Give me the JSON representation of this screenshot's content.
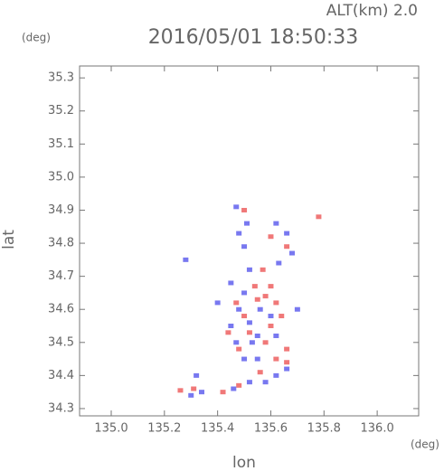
{
  "chart_data": {
    "type": "scatter",
    "title": "2016/05/01 18:50:33",
    "subtitle": "ALT(km) 2.0",
    "x_label": "lon",
    "y_label": "lat",
    "x_unit": "(deg)",
    "y_unit": "(deg)",
    "xlim": [
      134.881,
      136.156
    ],
    "ylim": [
      34.278,
      35.336
    ],
    "xticks": [
      {
        "value": 135,
        "label": "135.0"
      },
      135.2,
      135.4,
      135.6,
      135.8,
      {
        "value": 136,
        "label": "136.0"
      }
    ],
    "yticks": [
      34.3,
      34.4,
      34.5,
      34.6,
      34.7,
      34.8,
      34.9,
      {
        "value": 35,
        "label": "35.0"
      },
      35.1,
      35.2,
      35.3
    ],
    "series": [
      {
        "color": "#f07878",
        "x": [
          135.26,
          135.42,
          135.48,
          135.56,
          135.62,
          135.66,
          135.6,
          135.62,
          135.58,
          135.6,
          135.55,
          135.5,
          135.47,
          135.78,
          135.6,
          135.54,
          135.64,
          135.52,
          135.44,
          135.48,
          135.58,
          135.66,
          135.31,
          135.5,
          135.57,
          135.66
        ],
        "y": [
          34.355,
          34.35,
          34.37,
          34.41,
          34.45,
          34.48,
          34.55,
          34.62,
          34.64,
          34.67,
          34.63,
          34.58,
          34.62,
          34.88,
          34.82,
          34.67,
          34.58,
          34.53,
          34.53,
          34.48,
          34.5,
          34.44,
          34.36,
          34.9,
          34.72,
          34.79
        ]
      },
      {
        "color": "#7878f0",
        "x": [
          135.3,
          135.34,
          135.32,
          135.46,
          135.52,
          135.58,
          135.62,
          135.66,
          135.55,
          135.5,
          135.47,
          135.53,
          135.52,
          135.48,
          135.5,
          135.56,
          135.6,
          135.55,
          135.45,
          135.52,
          135.5,
          135.48,
          135.51,
          135.47,
          135.62,
          135.66,
          135.68,
          135.63,
          135.45,
          135.62,
          135.28,
          135.4,
          135.7
        ],
        "y": [
          34.34,
          34.35,
          34.4,
          34.36,
          34.38,
          34.38,
          34.4,
          34.42,
          34.45,
          34.45,
          34.5,
          34.5,
          34.56,
          34.6,
          34.65,
          34.6,
          34.58,
          34.52,
          34.68,
          34.72,
          34.79,
          34.83,
          34.86,
          34.91,
          34.86,
          34.83,
          34.77,
          34.74,
          34.55,
          34.52,
          34.75,
          34.62,
          34.6
        ]
      }
    ]
  }
}
